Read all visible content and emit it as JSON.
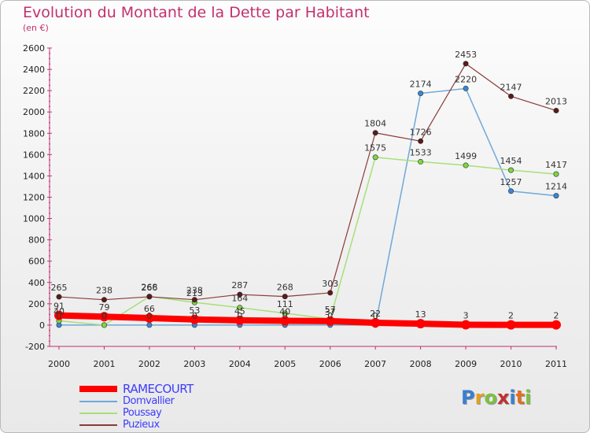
{
  "header": {
    "title": "Evolution du Montant de la Dette par Habitant",
    "subtitle": "(en €)"
  },
  "logo": {
    "text": "Proxiti"
  },
  "chart_data": {
    "type": "line",
    "title": "Evolution du Montant de la Dette par Habitant",
    "subtitle": "(en €)",
    "x": [
      "2000",
      "2001",
      "2002",
      "2003",
      "2004",
      "2005",
      "2006",
      "2007",
      "2008",
      "2009",
      "2010",
      "2011"
    ],
    "ylim": [
      -200,
      2600
    ],
    "yticks": [
      -200,
      0,
      200,
      400,
      600,
      800,
      1000,
      1200,
      1400,
      1600,
      1800,
      2000,
      2200,
      2400,
      2600
    ],
    "grid": false,
    "legend_position": "bottom-left",
    "series": [
      {
        "name": "RAMECOURT",
        "color": "#ff0000",
        "width": 8,
        "values": [
          91,
          79,
          66,
          53,
          45,
          40,
          37,
          22,
          13,
          3,
          2,
          2
        ],
        "labels": [
          "91",
          "79",
          "66",
          "53",
          "45",
          "40",
          "37",
          "22",
          "13",
          "3",
          "2",
          "2"
        ]
      },
      {
        "name": "Domvallier",
        "color": "#6fa8d8",
        "width": 1.5,
        "marker": "#3b86d6",
        "values": [
          0,
          0,
          0,
          0,
          0,
          0,
          0,
          0,
          2174,
          2220,
          1257,
          1214
        ],
        "labels": [
          "0",
          "0",
          "0",
          "0",
          "0",
          "0",
          "0",
          "0",
          "2174",
          "2220",
          "1257",
          "1214"
        ]
      },
      {
        "name": "Poussay",
        "color": "#a6e07a",
        "width": 1.5,
        "marker": "#7fd640",
        "values": [
          40,
          0,
          268,
          213,
          164,
          111,
          57,
          1575,
          1533,
          1499,
          1454,
          1417
        ],
        "labels": [
          "40",
          "0",
          "268",
          "213",
          "164",
          "111",
          "57",
          "1575",
          "1533",
          "1499",
          "1454",
          "1417"
        ]
      },
      {
        "name": "Puzieux",
        "color": "#8a3a3a",
        "width": 1.2,
        "marker": "#5a1a1a",
        "values": [
          265,
          238,
          266,
          238,
          287,
          268,
          303,
          1804,
          1726,
          2453,
          2147,
          2013
        ],
        "labels": [
          "265",
          "238",
          "266",
          "238",
          "287",
          "268",
          "303",
          "1804",
          "1726",
          "2453",
          "2147",
          "2013"
        ]
      }
    ]
  }
}
